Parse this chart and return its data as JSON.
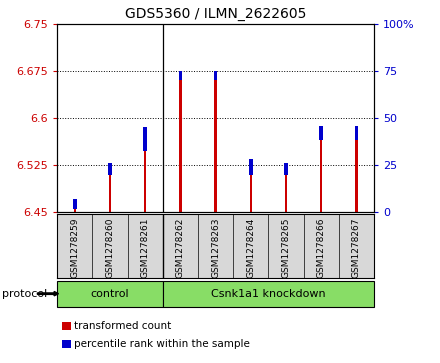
{
  "title": "GDS5360 / ILMN_2622605",
  "samples": [
    "GSM1278259",
    "GSM1278260",
    "GSM1278261",
    "GSM1278262",
    "GSM1278263",
    "GSM1278264",
    "GSM1278265",
    "GSM1278266",
    "GSM1278267"
  ],
  "red_values": [
    6.472,
    6.528,
    6.585,
    6.675,
    6.675,
    6.535,
    6.528,
    6.588,
    6.588
  ],
  "blue_values": [
    6.463,
    6.518,
    6.555,
    6.668,
    6.668,
    6.518,
    6.518,
    6.573,
    6.573
  ],
  "base": 6.45,
  "ylim_left": [
    6.45,
    6.75
  ],
  "ylim_right": [
    0,
    100
  ],
  "yticks_left": [
    6.45,
    6.525,
    6.6,
    6.675,
    6.75
  ],
  "yticks_right": [
    0,
    25,
    50,
    75,
    100
  ],
  "ytick_labels_right": [
    "0",
    "25",
    "50",
    "75",
    "100%"
  ],
  "left_tick_color": "#cc0000",
  "right_tick_color": "#0000cc",
  "bar_red_color": "#cc0000",
  "bar_blue_color": "#0000cc",
  "protocol_groups": [
    {
      "label": "control",
      "start": 0,
      "end": 3
    },
    {
      "label": "Csnk1a1 knockdown",
      "start": 3,
      "end": 9
    }
  ],
  "protocol_label": "protocol",
  "legend_items": [
    {
      "color": "#cc0000",
      "label": "transformed count"
    },
    {
      "color": "#0000cc",
      "label": "percentile rank within the sample"
    }
  ],
  "bg_color": "#d8d8d8",
  "protocol_bg_color": "#88dd66",
  "grid_color": "#000000",
  "bar_width": 0.07,
  "blue_bar_extra": 0.008
}
